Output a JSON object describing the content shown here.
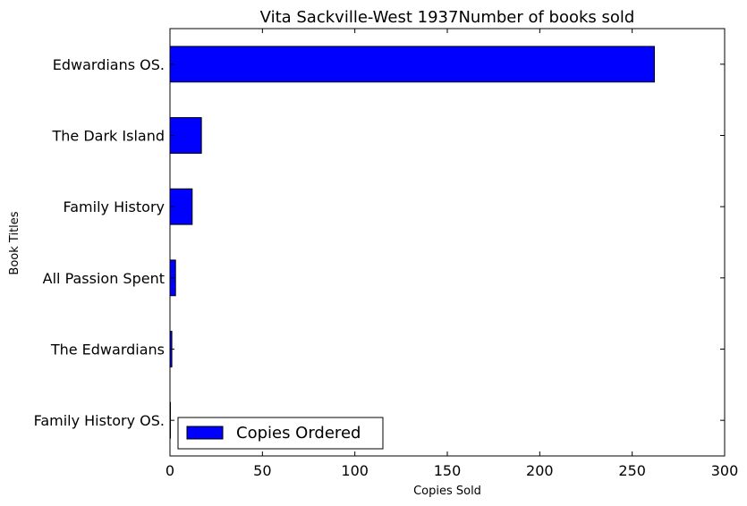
{
  "chart_data": {
    "type": "bar",
    "orientation": "horizontal",
    "title": "Vita Sackville-West 1937Number of books sold",
    "xlabel": "Copies Sold",
    "ylabel": "Book Titles",
    "categories": [
      "Edwardians OS.",
      "The Dark Island",
      "Family History",
      "All Passion Spent",
      "The Edwardians",
      "Family History OS."
    ],
    "series": [
      {
        "name": "Copies Ordered",
        "values": [
          262,
          17,
          12,
          3,
          1,
          0
        ]
      }
    ],
    "xlim": [
      0,
      300
    ],
    "xticks": [
      "0",
      "50",
      "100",
      "150",
      "200",
      "250",
      "300"
    ],
    "grid": false,
    "legend_position": "lower-left",
    "colors": {
      "bar": "#0000ff",
      "bar_edge": "#000000",
      "axes": "#000000"
    }
  }
}
